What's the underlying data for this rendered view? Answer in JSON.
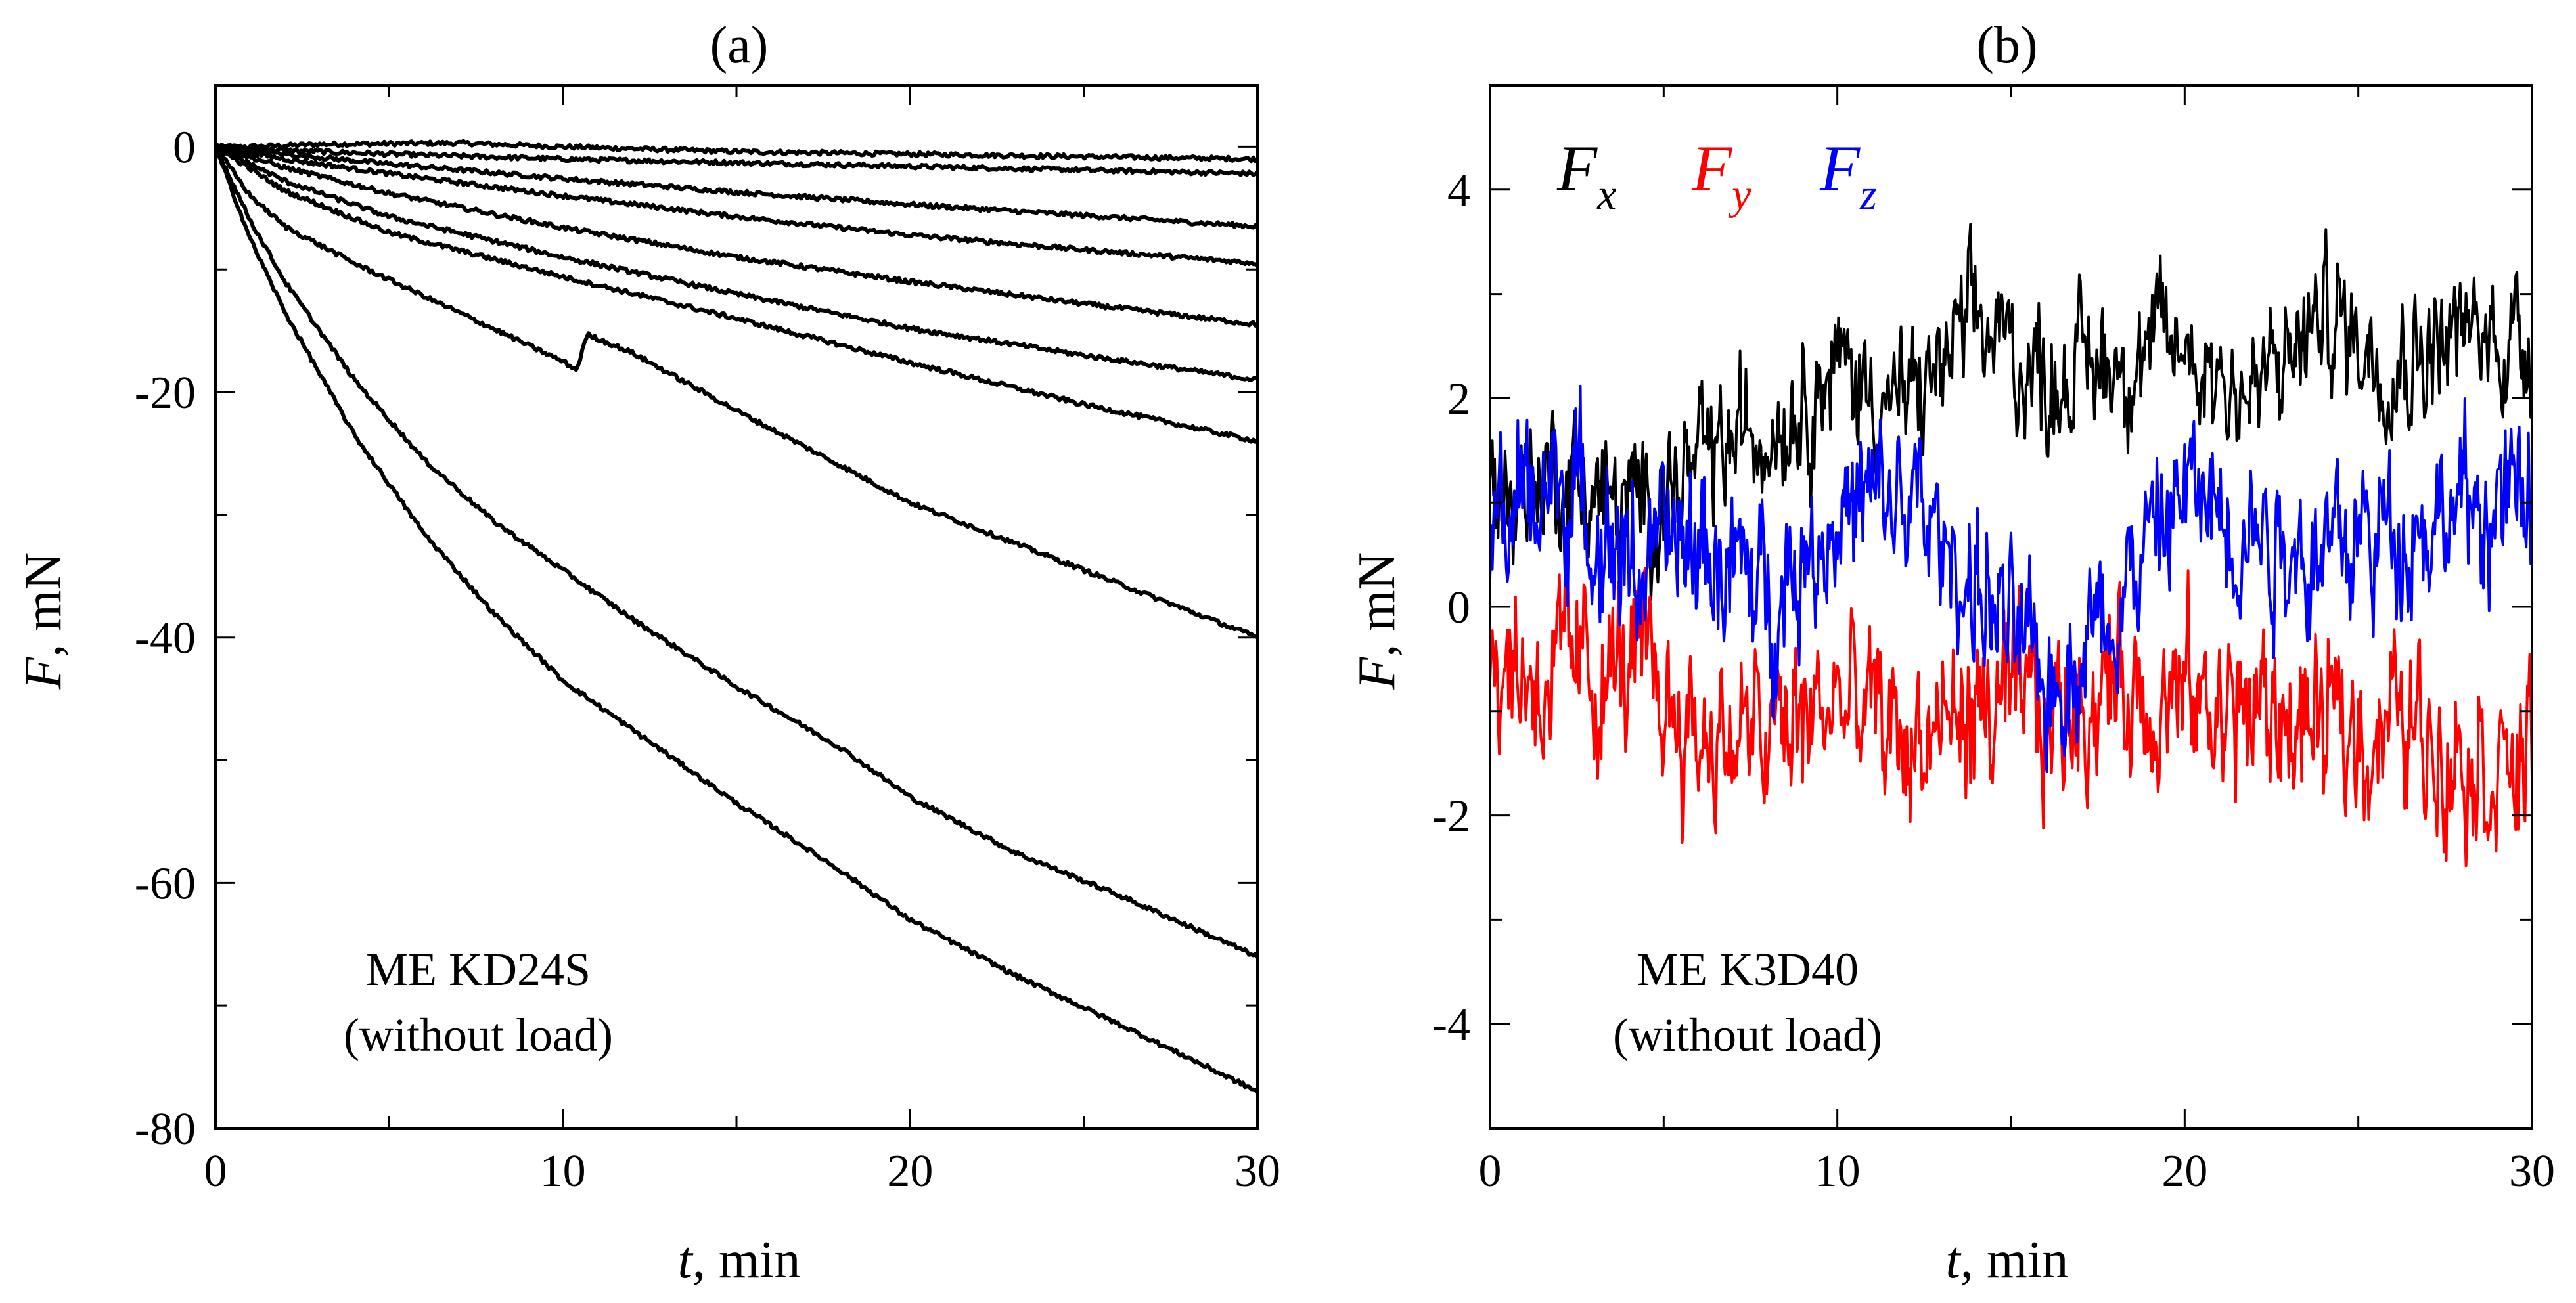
{
  "chart_data": [
    {
      "type": "line",
      "title": "(a)",
      "xlabel_var": "t",
      "xlabel_unit": ", min",
      "ylabel_var": "F",
      "ylabel_unit": ", mN",
      "xlim": [
        0,
        30
      ],
      "ylim": [
        -80,
        5
      ],
      "xticks": [
        0,
        10,
        20,
        30
      ],
      "yticks": [
        0,
        -20,
        -40,
        -60,
        -80
      ],
      "grid": false,
      "annotation": [
        "ME KD24S",
        "(without load)"
      ],
      "line_color": "#000000",
      "series": [
        {
          "x": [
            0,
            1,
            3,
            7,
            10,
            15,
            20,
            25,
            30
          ],
          "values": [
            0,
            0,
            0.2,
            0.3,
            0,
            -0.4,
            -0.6,
            -0.8,
            -1
          ]
        },
        {
          "x": [
            0,
            2,
            5,
            10,
            15,
            20,
            25,
            30
          ],
          "values": [
            0,
            -0.3,
            -0.6,
            -1,
            -1.3,
            -1.6,
            -1.9,
            -2.2
          ]
        },
        {
          "x": [
            0,
            2,
            5,
            10,
            15,
            20,
            25,
            30
          ],
          "values": [
            0,
            -0.6,
            -1.4,
            -2.6,
            -3.7,
            -4.7,
            -5.6,
            -6.5
          ]
        },
        {
          "x": [
            0,
            2,
            5,
            10,
            15,
            20,
            25,
            30
          ],
          "values": [
            0,
            -1,
            -2.2,
            -4,
            -5.7,
            -7.2,
            -8.4,
            -9.5
          ]
        },
        {
          "x": [
            0,
            2,
            5,
            10,
            15,
            20,
            25,
            30
          ],
          "values": [
            0,
            -1.7,
            -3.8,
            -6.6,
            -9,
            -11,
            -12.8,
            -14.5
          ]
        },
        {
          "x": [
            0,
            2,
            5,
            10,
            15,
            20,
            25,
            30
          ],
          "values": [
            0,
            -2.8,
            -5.7,
            -9,
            -12,
            -14.8,
            -17,
            -19
          ]
        },
        {
          "x": [
            0,
            2,
            5,
            10,
            15,
            20,
            25,
            30
          ],
          "values": [
            0,
            -3.6,
            -7,
            -10.6,
            -14,
            -17.6,
            -21,
            -24
          ]
        },
        {
          "x": [
            0,
            1,
            2,
            4,
            7,
            10,
            10.4,
            10.7,
            12,
            15,
            20,
            25,
            30
          ],
          "values": [
            0,
            -4,
            -6.5,
            -9.5,
            -13.5,
            -17.5,
            -18.2,
            -15.3,
            -16.8,
            -21.5,
            -29,
            -34.5,
            -40
          ]
        },
        {
          "x": [
            0,
            1,
            2,
            4,
            6,
            8,
            10,
            12,
            15,
            18,
            20,
            23,
            26,
            30
          ],
          "values": [
            0,
            -6,
            -11,
            -19,
            -25.5,
            -30.5,
            -34.5,
            -38.5,
            -44,
            -49,
            -53,
            -57.5,
            -61,
            -66
          ]
        },
        {
          "x": [
            0,
            1,
            2,
            4,
            6,
            8,
            10,
            12,
            15,
            18,
            20,
            23,
            26,
            30
          ],
          "values": [
            0,
            -7.5,
            -13.5,
            -23.5,
            -31.5,
            -38,
            -43.5,
            -47.5,
            -53.5,
            -59,
            -63,
            -67.5,
            -71.5,
            -77
          ]
        }
      ]
    },
    {
      "type": "line",
      "title": "(b)",
      "xlabel_var": "t",
      "xlabel_unit": ", min",
      "ylabel_var": "F",
      "ylabel_unit": ", mN",
      "xlim": [
        0,
        30
      ],
      "ylim": [
        -5,
        5
      ],
      "xticks": [
        0,
        10,
        20,
        30
      ],
      "yticks": [
        4,
        2,
        0,
        -2,
        -4
      ],
      "grid": false,
      "annotation": [
        "ME K3D40",
        "(without load)"
      ],
      "legend_placement": "top-left",
      "series": [
        {
          "name": "F",
          "sub": "x",
          "color": "#000000",
          "x": [
            0,
            2,
            4,
            6,
            8,
            10,
            12,
            14,
            16,
            18,
            20,
            22,
            24,
            26,
            28,
            30
          ],
          "values": [
            1.1,
            1.3,
            0.9,
            1.3,
            1.8,
            2.3,
            1.9,
            2.7,
            2.2,
            2.4,
            2.5,
            2.0,
            2.8,
            2.4,
            2.6,
            2.6
          ],
          "noise": 0.55
        },
        {
          "name": "F",
          "sub": "y",
          "color": "#ff0000",
          "x": [
            0,
            2,
            4,
            6,
            8,
            10,
            12,
            14,
            16,
            18,
            20,
            22,
            24,
            26,
            28,
            30
          ],
          "values": [
            -0.5,
            -0.7,
            -0.6,
            -1.2,
            -1.3,
            -0.9,
            -1.3,
            -1.0,
            -1.1,
            -0.7,
            -0.9,
            -1.0,
            -1.2,
            -1.1,
            -1.3,
            -1.6
          ],
          "noise": 0.7
        },
        {
          "name": "F",
          "sub": "z",
          "color": "#0000ff",
          "x": [
            0,
            2,
            4,
            6,
            8,
            10,
            12,
            14,
            16,
            18,
            20,
            22,
            24,
            26,
            28,
            30
          ],
          "values": [
            0.8,
            1.2,
            0.4,
            0.6,
            0.1,
            0.9,
            1.0,
            0.2,
            -0.8,
            0.1,
            1.1,
            0.8,
            0.5,
            0.8,
            0.9,
            1.0
          ],
          "noise": 0.65
        }
      ]
    }
  ]
}
